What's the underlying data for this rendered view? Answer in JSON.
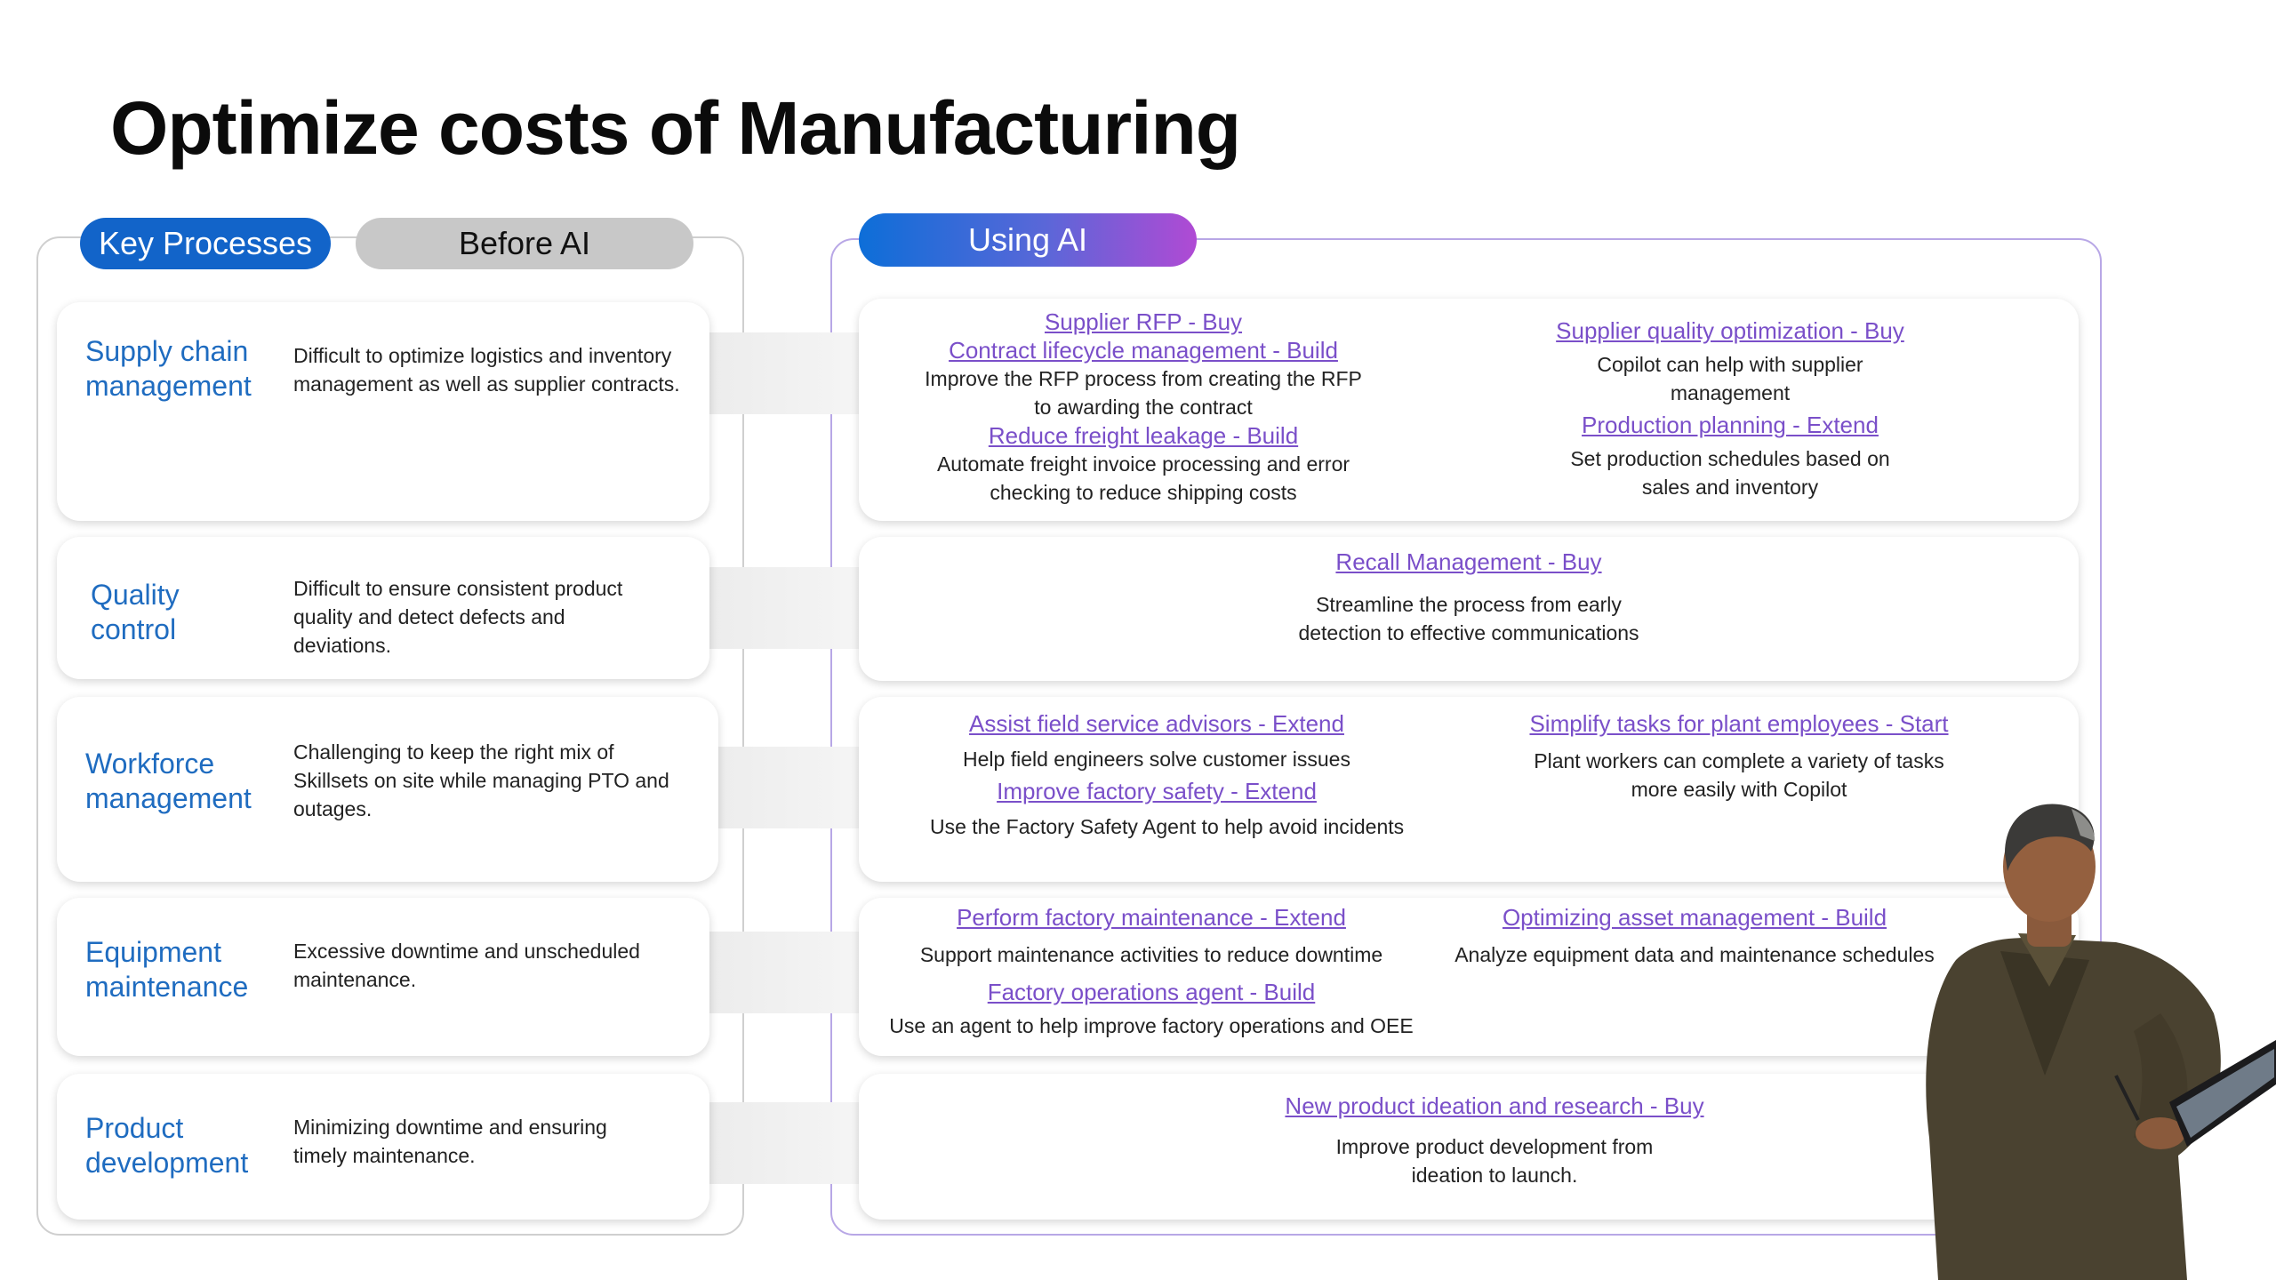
{
  "title": "Optimize costs of Manufacturing",
  "headers": {
    "key_processes": "Key Processes",
    "before_ai": "Before AI",
    "using_ai": "Using AI"
  },
  "colors": {
    "accent_blue": "#1264c9",
    "link_purple": "#7a4fc9",
    "frame_purple": "#b8a7e6",
    "pill_gray": "#c8c8c8"
  },
  "processes": [
    {
      "name_line1": "Supply chain",
      "name_line2": "management",
      "desc_line1": "Difficult to optimize logistics and inventory",
      "desc_line2": "management as well as supplier contracts.",
      "desc_line3": ""
    },
    {
      "name_line1": "Quality",
      "name_line2": "control",
      "desc_line1": "Difficult to ensure consistent product",
      "desc_line2": "quality and detect defects and",
      "desc_line3": "deviations."
    },
    {
      "name_line1": "Workforce",
      "name_line2": "management",
      "desc_line1": "Challenging to keep the right mix of",
      "desc_line2": "Skillsets on site while managing PTO and",
      "desc_line3": "outages."
    },
    {
      "name_line1": "Equipment",
      "name_line2": "maintenance",
      "desc_line1": "Excessive downtime and unscheduled",
      "desc_line2": "maintenance.",
      "desc_line3": ""
    },
    {
      "name_line1": "Product",
      "name_line2": "development",
      "desc_line1": "Minimizing downtime and ensuring",
      "desc_line2": "timely maintenance.",
      "desc_line3": ""
    }
  ],
  "ai": {
    "supply": {
      "left": {
        "link1": "Supplier RFP - Buy",
        "link2": "Contract lifecycle management - Build",
        "text1a": "Improve the RFP process from creating the RFP",
        "text1b": "to awarding the contract",
        "link3": "Reduce freight leakage - Build",
        "text2a": "Automate freight invoice processing and error",
        "text2b": "checking to reduce shipping costs"
      },
      "right": {
        "link1": "Supplier quality optimization - Buy",
        "text1a": "Copilot can help with supplier",
        "text1b": "management",
        "link2": "Production planning - Extend",
        "text2a": "Set production schedules based on",
        "text2b": "sales and inventory"
      }
    },
    "quality": {
      "link1": "Recall Management - Buy",
      "text1a": "Streamline the process from early",
      "text1b": "detection to effective communications"
    },
    "workforce": {
      "left": {
        "link1": "Assist field service advisors - Extend",
        "text1": "Help field engineers solve customer issues",
        "link2": "Improve factory safety - Extend",
        "text2": "Use the Factory Safety Agent to help avoid incidents"
      },
      "right": {
        "link1": "Simplify tasks for plant employees - Start",
        "text1a": "Plant workers can complete a variety of tasks",
        "text1b": "more easily with Copilot"
      }
    },
    "equipment": {
      "left": {
        "link1": "Perform factory maintenance - Extend",
        "text1": "Support maintenance activities to reduce downtime",
        "link2": "Factory operations agent - Build",
        "text2": "Use an agent to help improve factory operations and OEE"
      },
      "right": {
        "link1": "Optimizing asset management - Build",
        "text1": "Analyze equipment data and maintenance schedules"
      }
    },
    "product": {
      "link1": "New product ideation and research - Buy",
      "text1a": "Improve product development from",
      "text1b": "ideation to launch."
    }
  },
  "image": {
    "icon": "worker-with-tablet-photo"
  }
}
